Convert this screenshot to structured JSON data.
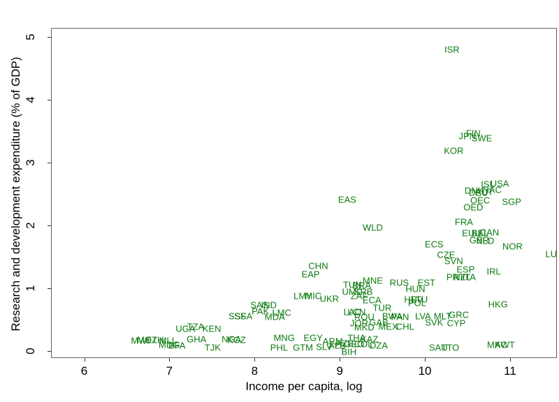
{
  "colors": {
    "label_green": "#0c7a10",
    "axis_line": "#606060",
    "tick_text": "#000000"
  },
  "chart_data": {
    "type": "scatter",
    "title": "",
    "xlabel": "Income per capita, log",
    "ylabel": "Research and development expenditure (% of GDP)",
    "xlim": [
      5.61,
      11.55
    ],
    "ylim": [
      -0.11,
      5.14
    ],
    "x_ticks": [
      6,
      7,
      8,
      9,
      10,
      11
    ],
    "y_ticks": [
      0,
      1,
      2,
      3,
      4,
      5
    ],
    "grid": false,
    "legend": false,
    "marker": "country-code-text",
    "points": [
      {
        "code": "ISR",
        "x": 10.31,
        "y": 4.81
      },
      {
        "code": "FIN",
        "x": 10.56,
        "y": 3.48
      },
      {
        "code": "JPN",
        "x": 10.49,
        "y": 3.43
      },
      {
        "code": "SWE",
        "x": 10.66,
        "y": 3.4
      },
      {
        "code": "KOR",
        "x": 10.33,
        "y": 3.2
      },
      {
        "code": "ISL",
        "x": 10.73,
        "y": 2.67
      },
      {
        "code": "USA",
        "x": 10.87,
        "y": 2.68
      },
      {
        "code": "DNK",
        "x": 10.57,
        "y": 2.57
      },
      {
        "code": "DEU",
        "x": 10.62,
        "y": 2.53
      },
      {
        "code": "AUT",
        "x": 10.69,
        "y": 2.54
      },
      {
        "code": "NAC",
        "x": 10.78,
        "y": 2.58
      },
      {
        "code": "OEC",
        "x": 10.64,
        "y": 2.41
      },
      {
        "code": "SGP",
        "x": 11.01,
        "y": 2.39
      },
      {
        "code": "OED",
        "x": 10.56,
        "y": 2.3
      },
      {
        "code": "FRA",
        "x": 10.45,
        "y": 2.06
      },
      {
        "code": "EUU",
        "x": 10.54,
        "y": 1.89
      },
      {
        "code": "BEL",
        "x": 10.64,
        "y": 1.89
      },
      {
        "code": "CAN",
        "x": 10.75,
        "y": 1.9
      },
      {
        "code": "GBR",
        "x": 10.63,
        "y": 1.78
      },
      {
        "code": "NLD",
        "x": 10.7,
        "y": 1.77
      },
      {
        "code": "ECS",
        "x": 10.1,
        "y": 1.71
      },
      {
        "code": "NOR",
        "x": 11.02,
        "y": 1.68
      },
      {
        "code": "LUX",
        "x": 11.51,
        "y": 1.56
      },
      {
        "code": "CZE",
        "x": 10.24,
        "y": 1.54
      },
      {
        "code": "SVN",
        "x": 10.33,
        "y": 1.44
      },
      {
        "code": "ESP",
        "x": 10.47,
        "y": 1.31
      },
      {
        "code": "IRL",
        "x": 10.8,
        "y": 1.28
      },
      {
        "code": "EAS",
        "x": 9.08,
        "y": 2.42
      },
      {
        "code": "WLD",
        "x": 9.38,
        "y": 1.98
      },
      {
        "code": "CHN",
        "x": 8.74,
        "y": 1.37
      },
      {
        "code": "EAP",
        "x": 8.65,
        "y": 1.23
      },
      {
        "code": "PRT",
        "x": 10.35,
        "y": 1.19
      },
      {
        "code": "NZL",
        "x": 10.43,
        "y": 1.19
      },
      {
        "code": "ITA",
        "x": 10.51,
        "y": 1.19
      },
      {
        "code": "EST",
        "x": 10.01,
        "y": 1.1
      },
      {
        "code": "RUS",
        "x": 9.69,
        "y": 1.1
      },
      {
        "code": "HUN",
        "x": 9.88,
        "y": 1.0
      },
      {
        "code": "MNE",
        "x": 9.38,
        "y": 1.13
      },
      {
        "code": "TUN",
        "x": 9.14,
        "y": 1.07
      },
      {
        "code": "BRA",
        "x": 9.25,
        "y": 1.06
      },
      {
        "code": "UMC",
        "x": 9.14,
        "y": 0.96
      },
      {
        "code": "SRB",
        "x": 9.27,
        "y": 0.96
      },
      {
        "code": "ZAF",
        "x": 9.22,
        "y": 0.89
      },
      {
        "code": "UKR",
        "x": 8.87,
        "y": 0.84
      },
      {
        "code": "LMY",
        "x": 8.56,
        "y": 0.89
      },
      {
        "code": "MIC",
        "x": 8.68,
        "y": 0.89
      },
      {
        "code": "ECA",
        "x": 9.37,
        "y": 0.82
      },
      {
        "code": "TUR",
        "x": 9.49,
        "y": 0.7
      },
      {
        "code": "HRV",
        "x": 9.86,
        "y": 0.83
      },
      {
        "code": "LTU",
        "x": 9.93,
        "y": 0.83
      },
      {
        "code": "POL",
        "x": 9.9,
        "y": 0.78
      },
      {
        "code": "HKG",
        "x": 10.85,
        "y": 0.76
      },
      {
        "code": "SAS",
        "x": 8.05,
        "y": 0.74
      },
      {
        "code": "IND",
        "x": 8.16,
        "y": 0.74
      },
      {
        "code": "PAK",
        "x": 8.06,
        "y": 0.64
      },
      {
        "code": "LMC",
        "x": 8.31,
        "y": 0.62
      },
      {
        "code": "MDA",
        "x": 8.23,
        "y": 0.56
      },
      {
        "code": "SSF",
        "x": 7.79,
        "y": 0.57
      },
      {
        "code": "SSA",
        "x": 7.86,
        "y": 0.57
      },
      {
        "code": "LAC",
        "x": 9.14,
        "y": 0.63
      },
      {
        "code": "LCN",
        "x": 9.19,
        "y": 0.63
      },
      {
        "code": "ROU",
        "x": 9.28,
        "y": 0.56
      },
      {
        "code": "BWA",
        "x": 9.61,
        "y": 0.57
      },
      {
        "code": "PAN",
        "x": 9.7,
        "y": 0.56
      },
      {
        "code": "JOR",
        "x": 9.22,
        "y": 0.46
      },
      {
        "code": "GAB",
        "x": 9.45,
        "y": 0.47
      },
      {
        "code": "MKD",
        "x": 9.28,
        "y": 0.39
      },
      {
        "code": "MEX",
        "x": 9.56,
        "y": 0.4
      },
      {
        "code": "CHL",
        "x": 9.76,
        "y": 0.4
      },
      {
        "code": "LVA",
        "x": 9.97,
        "y": 0.57
      },
      {
        "code": "MLT",
        "x": 10.2,
        "y": 0.57
      },
      {
        "code": "GRC",
        "x": 10.39,
        "y": 0.59
      },
      {
        "code": "SVK",
        "x": 10.1,
        "y": 0.47
      },
      {
        "code": "CYP",
        "x": 10.36,
        "y": 0.46
      },
      {
        "code": "UGA",
        "x": 7.18,
        "y": 0.37
      },
      {
        "code": "TZA",
        "x": 7.3,
        "y": 0.4
      },
      {
        "code": "KEN",
        "x": 7.49,
        "y": 0.37
      },
      {
        "code": "MWI",
        "x": 6.65,
        "y": 0.18
      },
      {
        "code": "MOZ",
        "x": 6.73,
        "y": 0.19
      },
      {
        "code": "ETH",
        "x": 6.82,
        "y": 0.19
      },
      {
        "code": "MLI",
        "x": 6.96,
        "y": 0.18
      },
      {
        "code": "MDG",
        "x": 6.99,
        "y": 0.11
      },
      {
        "code": "BFA",
        "x": 7.08,
        "y": 0.1
      },
      {
        "code": "GHA",
        "x": 7.31,
        "y": 0.2
      },
      {
        "code": "NGA",
        "x": 7.72,
        "y": 0.2
      },
      {
        "code": "KGZ",
        "x": 7.78,
        "y": 0.19
      },
      {
        "code": "TJK",
        "x": 7.5,
        "y": 0.07
      },
      {
        "code": "MNG",
        "x": 8.34,
        "y": 0.22
      },
      {
        "code": "EGY",
        "x": 8.68,
        "y": 0.22
      },
      {
        "code": "ARM",
        "x": 8.91,
        "y": 0.17
      },
      {
        "code": "THA",
        "x": 9.19,
        "y": 0.22
      },
      {
        "code": "KAZ",
        "x": 9.34,
        "y": 0.2
      },
      {
        "code": "AZE",
        "x": 9.05,
        "y": 0.13
      },
      {
        "code": "GEO",
        "x": 9.16,
        "y": 0.12
      },
      {
        "code": "COL",
        "x": 9.27,
        "y": 0.12
      },
      {
        "code": "DZA",
        "x": 9.45,
        "y": 0.1
      },
      {
        "code": "ALB",
        "x": 8.96,
        "y": 0.1
      },
      {
        "code": "PHL",
        "x": 8.28,
        "y": 0.07
      },
      {
        "code": "GTM",
        "x": 8.56,
        "y": 0.07
      },
      {
        "code": "SLV",
        "x": 8.81,
        "y": 0.08
      },
      {
        "code": "BIH",
        "x": 9.1,
        "y": 0.0
      },
      {
        "code": "SAU",
        "x": 10.15,
        "y": 0.07
      },
      {
        "code": "TTO",
        "x": 10.29,
        "y": 0.07
      },
      {
        "code": "MAC",
        "x": 10.84,
        "y": 0.11
      },
      {
        "code": "KWT",
        "x": 10.93,
        "y": 0.11
      }
    ]
  }
}
